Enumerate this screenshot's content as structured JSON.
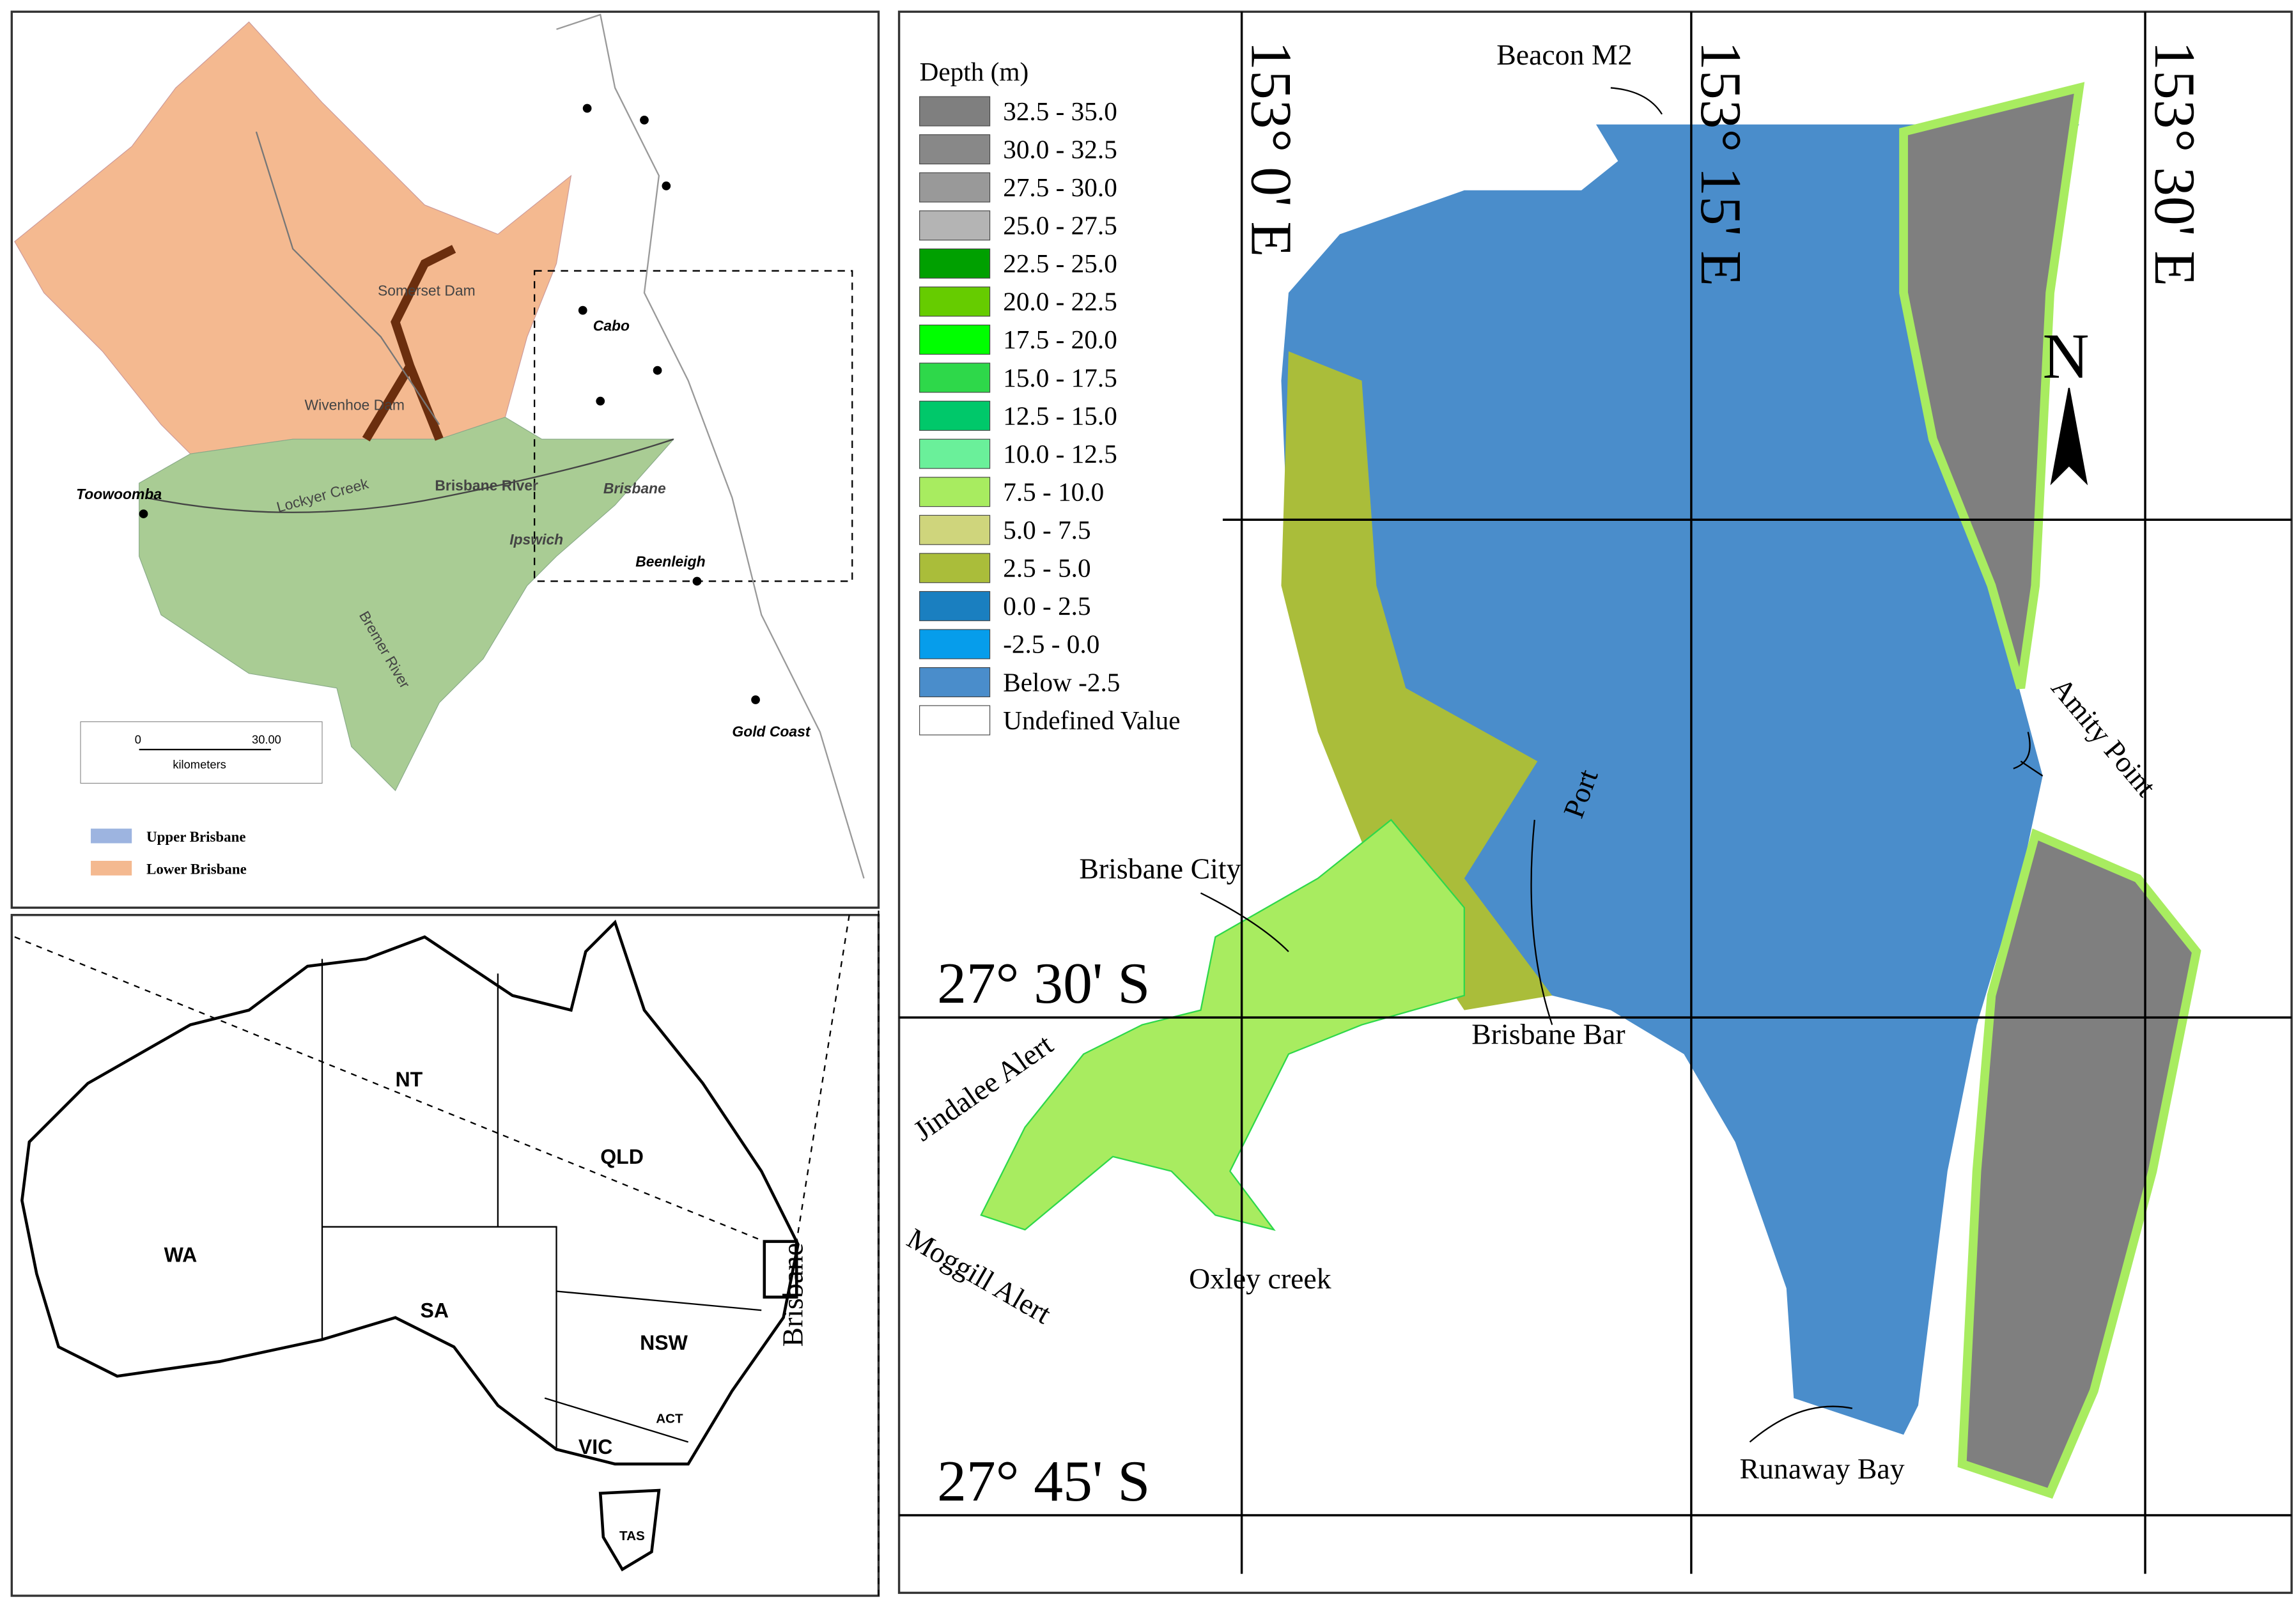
{
  "catchment_map": {
    "places": [
      "Somerset Dam",
      "Wivenhoe Dam",
      "Cabo",
      "Toowoomba",
      "Lockyer Creek",
      "Brisbane River",
      "Brisbane",
      "Ipswich",
      "Bremer River",
      "Beenleigh",
      "Gold Coast"
    ],
    "scale_ticks": [
      "0",
      "30.00"
    ],
    "scale_unit": "kilometers",
    "legend": [
      {
        "label": "Upper Brisbane",
        "color": "#9db4e0"
      },
      {
        "label": "Lower Brisbane",
        "color": "#f4b990"
      }
    ]
  },
  "australia_map": {
    "states": [
      "WA",
      "NT",
      "SA",
      "QLD",
      "NSW",
      "VIC",
      "ACT",
      "TAS"
    ],
    "label": "Brisbane"
  },
  "bathymetry_map": {
    "legend_title": "Depth (m)",
    "legend": [
      {
        "label": "32.5 - 35.0",
        "color": "#7f7f7f"
      },
      {
        "label": "30.0 - 32.5",
        "color": "#888888"
      },
      {
        "label": "27.5 - 30.0",
        "color": "#999999"
      },
      {
        "label": "25.0 - 27.5",
        "color": "#b4b4b4"
      },
      {
        "label": "22.5 - 25.0",
        "color": "#00a000"
      },
      {
        "label": "20.0 - 22.5",
        "color": "#66cc00"
      },
      {
        "label": "17.5 - 20.0",
        "color": "#00ff00"
      },
      {
        "label": "15.0 - 17.5",
        "color": "#2ed84a"
      },
      {
        "label": "12.5 - 15.0",
        "color": "#00c86a"
      },
      {
        "label": "10.0 - 12.5",
        "color": "#6af09a"
      },
      {
        "label": "7.5 - 10.0",
        "color": "#a8ec60"
      },
      {
        "label": "5.0 - 7.5",
        "color": "#cfd57c"
      },
      {
        "label": "2.5 - 5.0",
        "color": "#aabd3a"
      },
      {
        "label": "0.0 - 2.5",
        "color": "#1a7fc0"
      },
      {
        "label": "-2.5 - 0.0",
        "color": "#069deb"
      },
      {
        "label": "Below -2.5",
        "color": "#4a8dcb"
      },
      {
        "label": "Undefined Value",
        "color": "#ffffff"
      }
    ],
    "longitudes": [
      "153° 0' E",
      "153° 15' E",
      "153° 30' E"
    ],
    "latitudes": [
      "27° 30' S",
      "27° 45' S"
    ],
    "north": "N",
    "places": [
      "Beacon M2",
      "Amity Point",
      "Port",
      "Brisbane City",
      "Brisbane Bar",
      "Jindalee Alert",
      "Moggill Alert",
      "Oxley creek",
      "Runaway Bay"
    ]
  }
}
